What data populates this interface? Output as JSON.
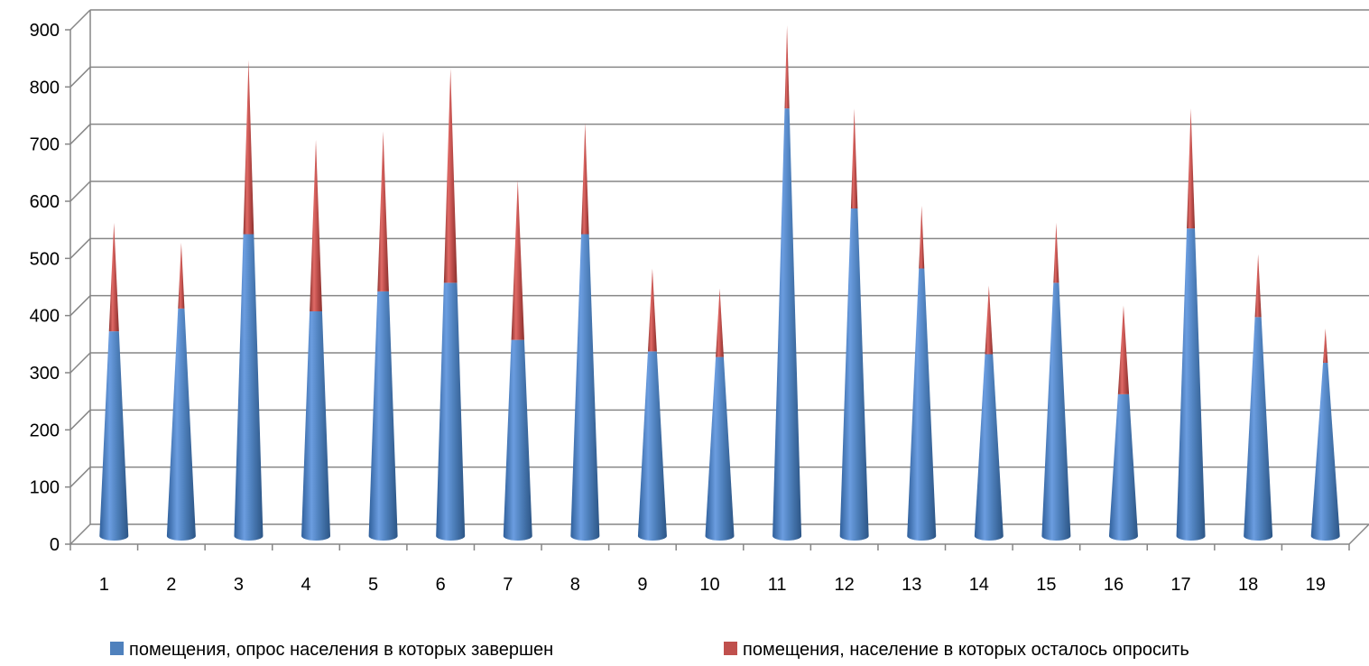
{
  "chart_data": {
    "type": "bar",
    "stacked": true,
    "shape": "cone",
    "title": "",
    "xlabel": "",
    "ylabel": "",
    "ylim": [
      0,
      900
    ],
    "yticks": [
      0,
      100,
      200,
      300,
      400,
      500,
      600,
      700,
      800,
      900
    ],
    "grid": true,
    "legend_position": "bottom",
    "categories": [
      "1",
      "2",
      "3",
      "4",
      "5",
      "6",
      "7",
      "8",
      "9",
      "10",
      "11",
      "12",
      "13",
      "14",
      "15",
      "16",
      "17",
      "18",
      "19"
    ],
    "series": [
      {
        "name": "помещения, опрос населения в которых завершен",
        "color": "#4f81bd",
        "values": [
          355,
          395,
          525,
          390,
          425,
          440,
          340,
          525,
          320,
          310,
          745,
          570,
          465,
          315,
          440,
          245,
          535,
          380,
          300
        ]
      },
      {
        "name": "помещения, население в которых осталось опросить",
        "color": "#c0504d",
        "values": [
          190,
          115,
          305,
          300,
          280,
          375,
          280,
          195,
          145,
          120,
          145,
          175,
          110,
          120,
          105,
          155,
          210,
          110,
          60
        ]
      }
    ]
  }
}
